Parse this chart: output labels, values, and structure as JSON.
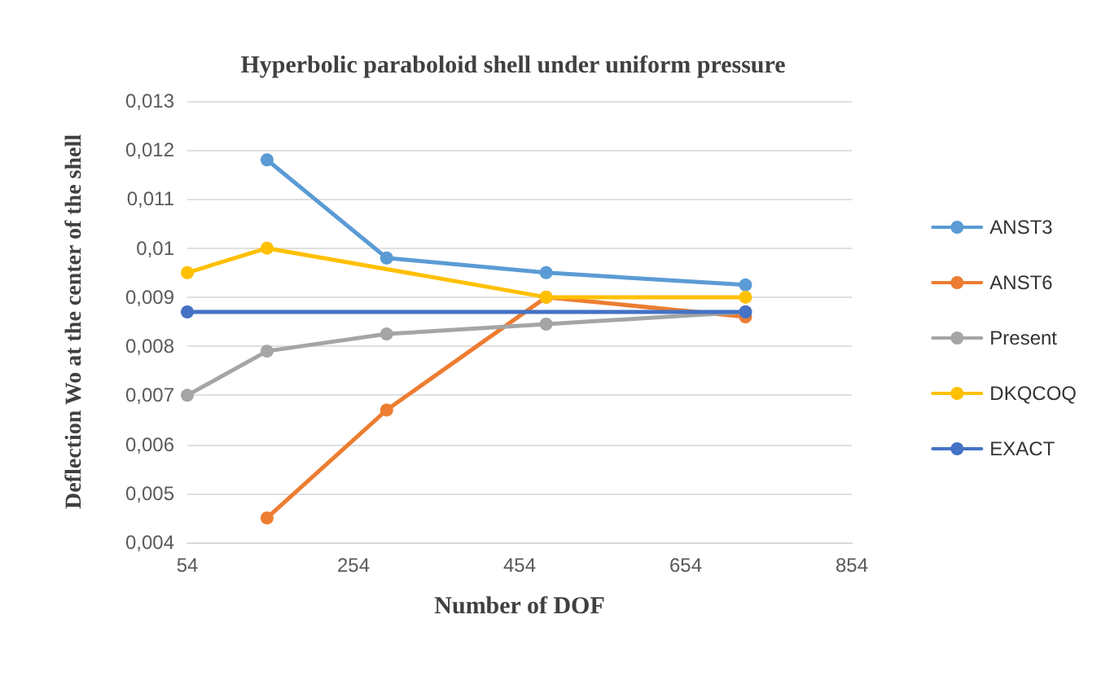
{
  "chart_data": {
    "type": "line",
    "title": "Hyperbolic paraboloid shell under uniform pressure",
    "xlabel": "Number of DOF",
    "ylabel": "Deflection Wo at the center of the shell",
    "xlim": [
      54,
      854
    ],
    "xticks": [
      54,
      254,
      454,
      654,
      854
    ],
    "ylim": [
      0.004,
      0.013
    ],
    "yticks": [
      {
        "value": 0.004,
        "label": "0,004"
      },
      {
        "value": 0.005,
        "label": "0,005"
      },
      {
        "value": 0.006,
        "label": "0,006"
      },
      {
        "value": 0.007,
        "label": "0,007"
      },
      {
        "value": 0.008,
        "label": "0,008"
      },
      {
        "value": 0.009,
        "label": "0,009"
      },
      {
        "value": 0.01,
        "label": "0,01"
      },
      {
        "value": 0.011,
        "label": "0,011"
      },
      {
        "value": 0.012,
        "label": "0,012"
      },
      {
        "value": 0.013,
        "label": "0,013"
      }
    ],
    "grid": "y",
    "legend": "right",
    "marker": "circle",
    "series": [
      {
        "name": "ANST3",
        "color": "#5b9bd5",
        "x": [
          150,
          294,
          486,
          726
        ],
        "values": [
          0.0118,
          0.0098,
          0.0095,
          0.00925
        ]
      },
      {
        "name": "ANST6",
        "color": "#ed7d31",
        "x": [
          150,
          294,
          486,
          726
        ],
        "values": [
          0.0045,
          0.0067,
          0.009,
          0.0086
        ]
      },
      {
        "name": "Present",
        "color": "#a5a5a5",
        "x": [
          54,
          150,
          294,
          486,
          726
        ],
        "values": [
          0.007,
          0.0079,
          0.00825,
          0.00845,
          0.0087
        ]
      },
      {
        "name": "DKQCOQ",
        "color": "#ffc000",
        "x": [
          54,
          150,
          486,
          726
        ],
        "values": [
          0.0095,
          0.01,
          0.009,
          0.009
        ]
      },
      {
        "name": "EXACT",
        "color": "#4472c4",
        "x": [
          54,
          726
        ],
        "values": [
          0.0087,
          0.0087
        ]
      }
    ]
  }
}
